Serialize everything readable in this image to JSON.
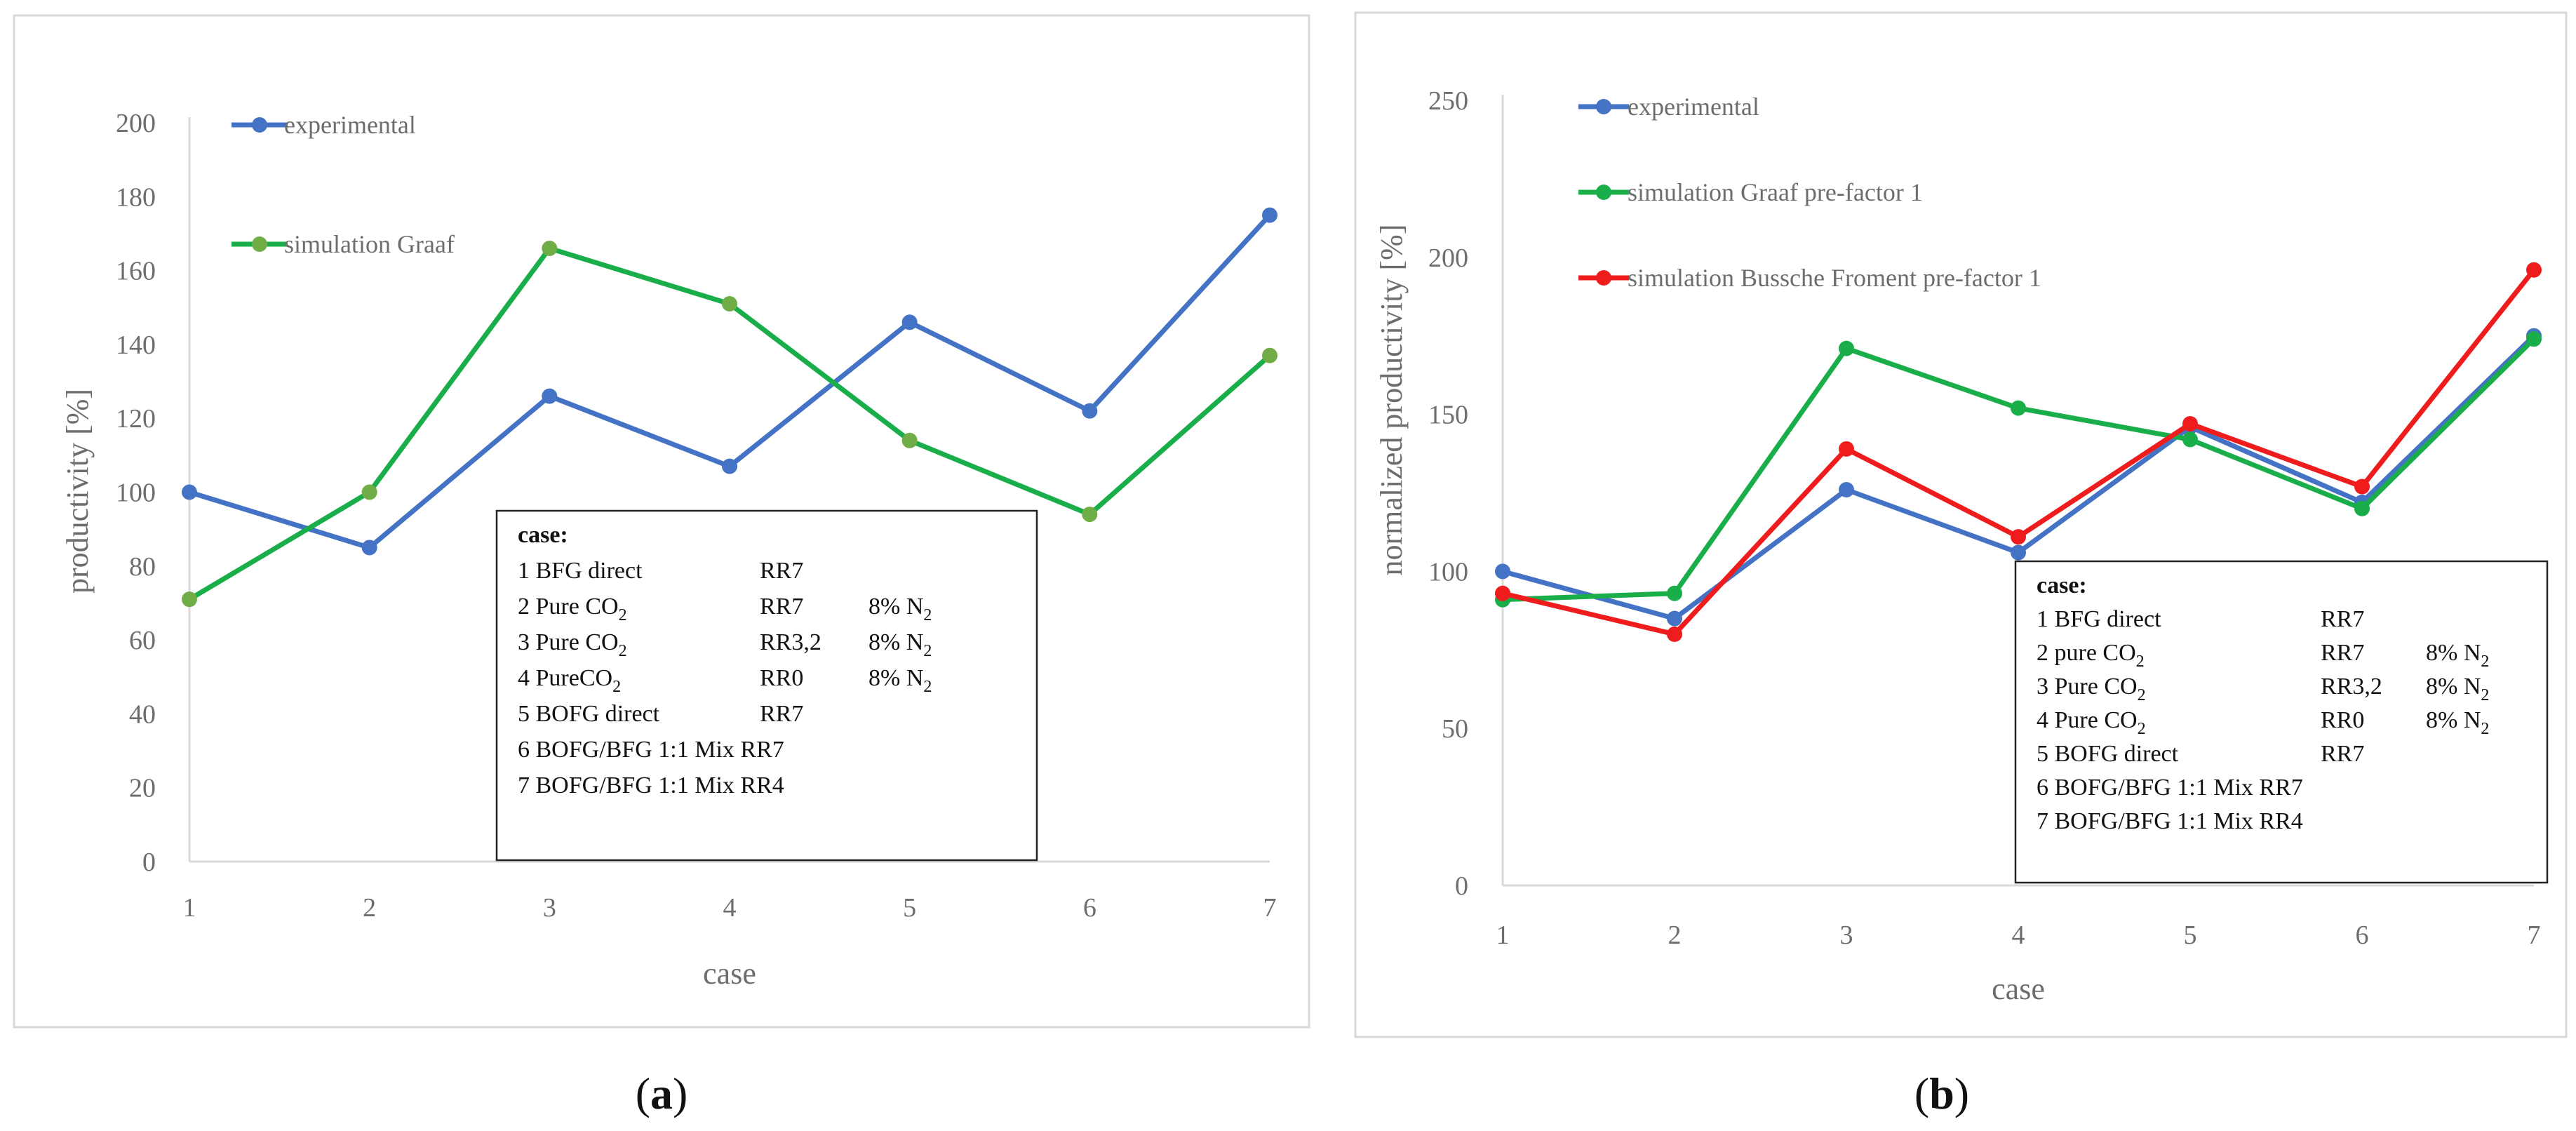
{
  "chart_data": [
    {
      "type": "line",
      "panel_label": "(a)",
      "panel_letter": "a",
      "title": "",
      "xlabel": "case",
      "ylabel": "productivity [%]",
      "ylim": [
        0,
        200
      ],
      "yticks": [
        0,
        20,
        40,
        60,
        80,
        100,
        120,
        140,
        160,
        180,
        200
      ],
      "x": [
        1,
        2,
        3,
        4,
        5,
        6,
        7
      ],
      "xtick_labels": [
        "1",
        "2",
        "3",
        "4",
        "5",
        "6",
        "7"
      ],
      "grid": false,
      "legend_position": "top-left",
      "series": [
        {
          "name": "experimental",
          "color": "#4472C4",
          "marker_color": "#4472C4",
          "values": [
            100,
            85,
            126,
            107,
            146,
            122,
            175
          ]
        },
        {
          "name": "simulation Graaf",
          "color": "#1AAE4A",
          "marker_color": "#70AD47",
          "values": [
            71,
            100,
            166,
            151,
            114,
            94,
            137
          ]
        }
      ],
      "case_box": {
        "title": "case:",
        "rows": [
          [
            "1 BFG direct",
            "RR7",
            "",
            ""
          ],
          [
            "2 Pure CO",
            "RR7",
            "8% N",
            "2"
          ],
          [
            "3 Pure CO",
            "RR3,2",
            "8% N",
            "2"
          ],
          [
            "4 PureCO",
            "RR0",
            "8% N",
            "2"
          ],
          [
            "5 BOFG direct",
            "RR7",
            "",
            ""
          ],
          [
            "6 BOFG/BFG 1:1 Mix RR7",
            "",
            "",
            ""
          ],
          [
            "7 BOFG/BFG 1:1 Mix RR4",
            "",
            "",
            ""
          ]
        ],
        "subscripts": [
          "",
          "2",
          "2",
          "2",
          "",
          "",
          ""
        ]
      }
    },
    {
      "type": "line",
      "panel_label": "(b)",
      "panel_letter": "b",
      "title": "",
      "xlabel": "case",
      "ylabel": "normalized productivity [%]",
      "ylim": [
        0,
        250
      ],
      "yticks": [
        0,
        50,
        100,
        150,
        200,
        250
      ],
      "x": [
        1,
        2,
        3,
        4,
        5,
        6,
        7
      ],
      "xtick_labels": [
        "1",
        "2",
        "3",
        "4",
        "5",
        "6",
        "7"
      ],
      "grid": false,
      "legend_position": "top-left",
      "series": [
        {
          "name": "experimental",
          "color": "#4472C4",
          "marker_color": "#4472C4",
          "values": [
            100,
            85,
            126,
            106,
            146,
            122,
            175
          ]
        },
        {
          "name": "simulation Graaf pre-factor 1",
          "color": "#1AAE4A",
          "marker_color": "#1AAE4A",
          "values": [
            91,
            93,
            171,
            152,
            142,
            120,
            174
          ]
        },
        {
          "name": "simulation Bussche Froment pre-factor 1",
          "color": "#EE1C1C",
          "marker_color": "#EE1C1C",
          "values": [
            93,
            80,
            139,
            111,
            147,
            127,
            196
          ]
        }
      ],
      "case_box": {
        "title": "case:",
        "rows": [
          [
            "1 BFG direct",
            "RR7",
            "",
            ""
          ],
          [
            "2 pure CO",
            "RR7",
            "8% N",
            "2"
          ],
          [
            "3 Pure CO",
            "RR3,2",
            "8% N",
            "2"
          ],
          [
            "4 Pure CO",
            "RR0",
            "8% N",
            "2"
          ],
          [
            "5 BOFG direct",
            "RR7",
            "",
            ""
          ],
          [
            "6 BOFG/BFG 1:1 Mix RR7",
            "",
            "",
            ""
          ],
          [
            "7 BOFG/BFG 1:1 Mix RR4",
            "",
            "",
            ""
          ]
        ],
        "subscripts": [
          "",
          "2",
          "2",
          "2",
          "",
          "",
          ""
        ]
      }
    }
  ]
}
